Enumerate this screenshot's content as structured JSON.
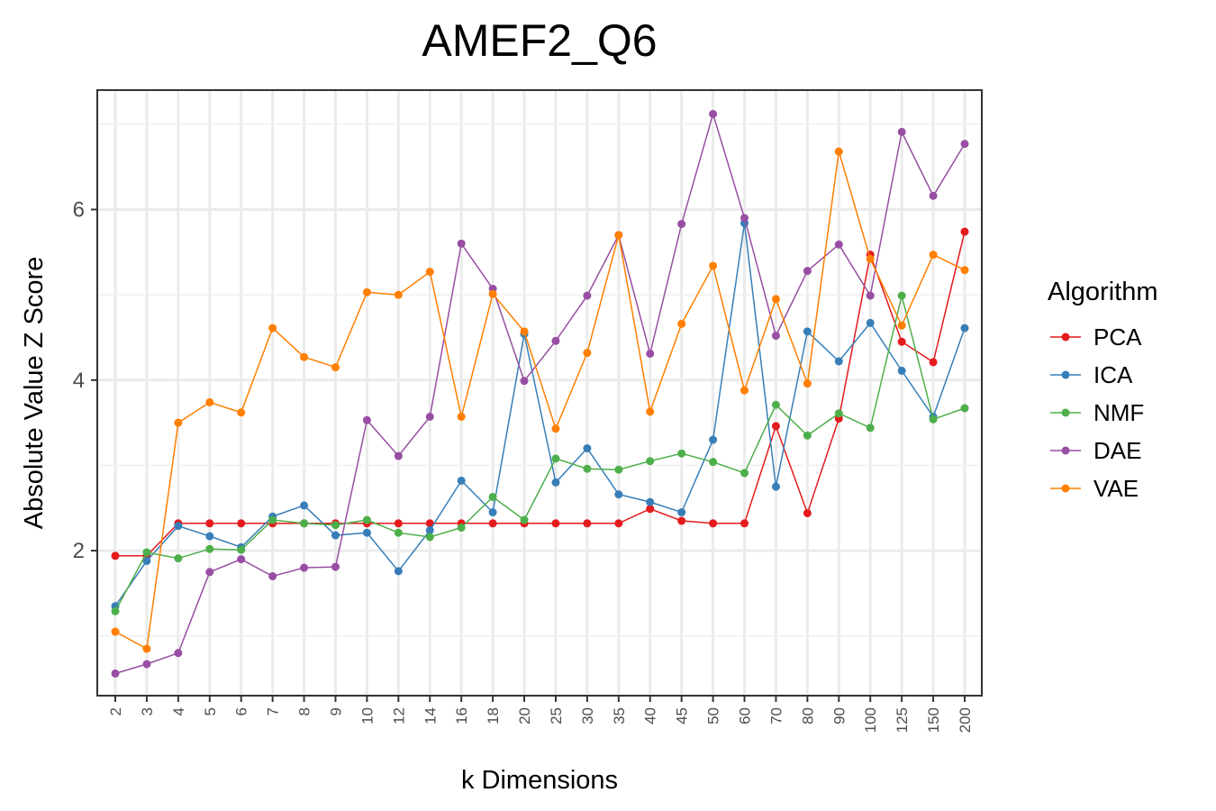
{
  "chart_data": {
    "type": "line",
    "title": "AMEF2_Q6",
    "xlabel": "k Dimensions",
    "ylabel": "Absolute Value Z Score",
    "categories": [
      "2",
      "3",
      "4",
      "5",
      "6",
      "7",
      "8",
      "9",
      "10",
      "12",
      "14",
      "16",
      "18",
      "20",
      "25",
      "30",
      "35",
      "40",
      "45",
      "50",
      "60",
      "70",
      "80",
      "90",
      "100",
      "125",
      "150",
      "200"
    ],
    "yticks": [
      2,
      4,
      6
    ],
    "ylim": [
      0.3,
      7.4
    ],
    "grid": true,
    "legend_title": "Algorithm",
    "legend_position": "right",
    "series": [
      {
        "name": "PCA",
        "color": "#E41A1C",
        "values": [
          1.94,
          1.94,
          2.32,
          2.32,
          2.32,
          2.32,
          2.32,
          2.32,
          2.32,
          2.32,
          2.32,
          2.32,
          2.32,
          2.32,
          2.32,
          2.32,
          2.32,
          2.49,
          2.35,
          2.32,
          2.32,
          3.46,
          2.44,
          3.55,
          5.47,
          4.45,
          4.21,
          5.74
        ]
      },
      {
        "name": "ICA",
        "color": "#377EB8",
        "values": [
          1.35,
          1.88,
          2.29,
          2.17,
          2.04,
          2.4,
          2.53,
          2.18,
          2.21,
          1.76,
          2.24,
          2.82,
          2.45,
          4.54,
          2.8,
          3.2,
          2.66,
          2.57,
          2.45,
          3.3,
          5.84,
          2.75,
          4.57,
          4.22,
          4.67,
          4.11,
          3.57,
          4.61
        ]
      },
      {
        "name": "NMF",
        "color": "#4DAF4A",
        "values": [
          1.29,
          1.98,
          1.91,
          2.02,
          2.01,
          2.36,
          2.32,
          2.3,
          2.36,
          2.21,
          2.16,
          2.27,
          2.63,
          2.36,
          3.08,
          2.96,
          2.95,
          3.05,
          3.14,
          3.04,
          2.91,
          3.71,
          3.35,
          3.61,
          3.44,
          4.99,
          3.54,
          3.67
        ]
      },
      {
        "name": "DAE",
        "color": "#984EA3",
        "values": [
          0.56,
          0.67,
          0.8,
          1.75,
          1.9,
          1.7,
          1.8,
          1.81,
          3.53,
          3.11,
          3.57,
          5.6,
          5.07,
          3.99,
          4.46,
          4.99,
          5.7,
          4.31,
          5.83,
          7.12,
          5.9,
          4.52,
          5.28,
          5.59,
          4.99,
          6.91,
          6.16,
          6.77
        ]
      },
      {
        "name": "VAE",
        "color": "#FF7F00",
        "values": [
          1.05,
          0.85,
          3.5,
          3.74,
          3.62,
          4.61,
          4.27,
          4.15,
          5.03,
          5.0,
          5.27,
          3.57,
          5.01,
          4.57,
          3.43,
          4.32,
          5.7,
          3.63,
          4.66,
          5.34,
          3.88,
          4.95,
          3.96,
          6.68,
          5.42,
          4.64,
          5.47,
          5.29
        ]
      }
    ]
  }
}
